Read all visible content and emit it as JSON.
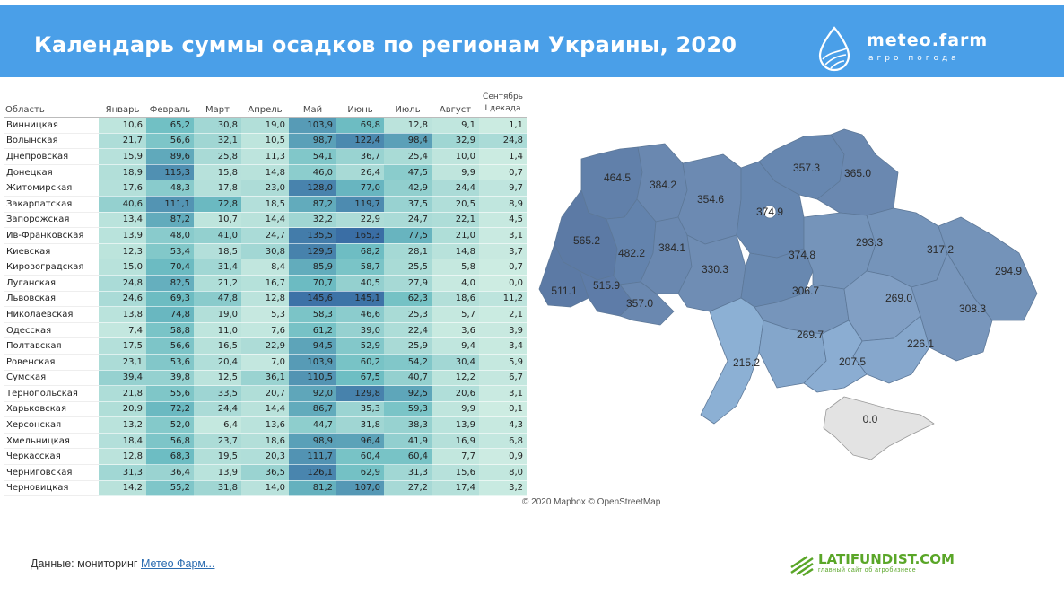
{
  "title": "Календарь суммы осадков по регионам Украины, 2020",
  "brand": {
    "name": "meteo.farm",
    "tagline": "агро погода"
  },
  "colors": {
    "header": "#4a9fe8",
    "map_low": "#8db4d6",
    "map_high": "#5a7ba6"
  },
  "chart_data": [
    {
      "type": "heatmap",
      "region_header": "Область",
      "columns": [
        "Январь",
        "Февраль",
        "Март",
        "Апрель",
        "Май",
        "Июнь",
        "Июль",
        "Август",
        "Сентябрь I декада"
      ],
      "rows": [
        {
          "region": "Винницкая",
          "values": [
            "10,6",
            "65,2",
            "30,8",
            "19,0",
            "103,9",
            "69,8",
            "12,8",
            "9,1",
            "1,1"
          ]
        },
        {
          "region": "Волынская",
          "values": [
            "21,7",
            "56,6",
            "32,1",
            "10,5",
            "98,7",
            "122,4",
            "98,4",
            "32,9",
            "24,8"
          ]
        },
        {
          "region": "Днепровская",
          "values": [
            "15,9",
            "89,6",
            "25,8",
            "11,3",
            "54,1",
            "36,7",
            "25,4",
            "10,0",
            "1,4"
          ]
        },
        {
          "region": "Донецкая",
          "values": [
            "18,9",
            "115,3",
            "15,8",
            "14,8",
            "46,0",
            "26,4",
            "47,5",
            "9,9",
            "0,7"
          ]
        },
        {
          "region": "Житомирская",
          "values": [
            "17,6",
            "48,3",
            "17,8",
            "23,0",
            "128,0",
            "77,0",
            "42,9",
            "24,4",
            "9,7"
          ]
        },
        {
          "region": "Закарпатская",
          "values": [
            "40,6",
            "111,1",
            "72,8",
            "18,5",
            "87,2",
            "119,7",
            "37,5",
            "20,5",
            "8,9"
          ]
        },
        {
          "region": "Запорожская",
          "values": [
            "13,4",
            "87,2",
            "10,7",
            "14,4",
            "32,2",
            "22,9",
            "24,7",
            "22,1",
            "4,5"
          ]
        },
        {
          "region": "Ив-Франковская",
          "values": [
            "13,9",
            "48,0",
            "41,0",
            "24,7",
            "135,5",
            "165,3",
            "77,5",
            "21,0",
            "3,1"
          ]
        },
        {
          "region": "Киевская",
          "values": [
            "12,3",
            "53,4",
            "18,5",
            "30,8",
            "129,5",
            "68,2",
            "28,1",
            "14,8",
            "3,7"
          ]
        },
        {
          "region": "Кировоградская",
          "values": [
            "15,0",
            "70,4",
            "31,4",
            "8,4",
            "85,9",
            "58,7",
            "25,5",
            "5,8",
            "0,7"
          ]
        },
        {
          "region": "Луганская",
          "values": [
            "24,8",
            "82,5",
            "21,2",
            "16,7",
            "70,7",
            "40,5",
            "27,9",
            "4,0",
            "0,0"
          ]
        },
        {
          "region": "Львовская",
          "values": [
            "24,6",
            "69,3",
            "47,8",
            "12,8",
            "145,6",
            "145,1",
            "62,3",
            "18,6",
            "11,2"
          ]
        },
        {
          "region": "Николаевская",
          "values": [
            "13,8",
            "74,8",
            "19,0",
            "5,3",
            "58,3",
            "46,6",
            "25,3",
            "5,7",
            "2,1"
          ]
        },
        {
          "region": "Одесская",
          "values": [
            "7,4",
            "58,8",
            "11,0",
            "7,6",
            "61,2",
            "39,0",
            "22,4",
            "3,6",
            "3,9"
          ]
        },
        {
          "region": "Полтавская",
          "values": [
            "17,5",
            "56,6",
            "16,5",
            "22,9",
            "94,5",
            "52,9",
            "25,9",
            "9,4",
            "3,4"
          ]
        },
        {
          "region": "Ровенская",
          "values": [
            "23,1",
            "53,6",
            "20,4",
            "7,0",
            "103,9",
            "60,2",
            "54,2",
            "30,4",
            "5,9"
          ]
        },
        {
          "region": "Сумская",
          "values": [
            "39,4",
            "39,8",
            "12,5",
            "36,1",
            "110,5",
            "67,5",
            "40,7",
            "12,2",
            "6,7"
          ]
        },
        {
          "region": "Тернопольская",
          "values": [
            "21,8",
            "55,6",
            "33,5",
            "20,7",
            "92,0",
            "129,8",
            "92,5",
            "20,6",
            "3,1"
          ]
        },
        {
          "region": "Харьковская",
          "values": [
            "20,9",
            "72,2",
            "24,4",
            "14,4",
            "86,7",
            "35,3",
            "59,3",
            "9,9",
            "0,1"
          ]
        },
        {
          "region": "Херсонская",
          "values": [
            "13,2",
            "52,0",
            "6,4",
            "13,6",
            "44,7",
            "31,8",
            "38,3",
            "13,9",
            "4,3"
          ]
        },
        {
          "region": "Хмельницкая",
          "values": [
            "18,4",
            "56,8",
            "23,7",
            "18,6",
            "98,9",
            "96,4",
            "41,9",
            "16,9",
            "6,8"
          ]
        },
        {
          "region": "Черкасская",
          "values": [
            "12,8",
            "68,3",
            "19,5",
            "20,3",
            "111,7",
            "60,4",
            "60,4",
            "7,7",
            "0,9"
          ]
        },
        {
          "region": "Черниговская",
          "values": [
            "31,3",
            "36,4",
            "13,9",
            "36,5",
            "126,1",
            "62,9",
            "31,3",
            "15,6",
            "8,0"
          ]
        },
        {
          "region": "Черновицкая",
          "values": [
            "14,2",
            "55,2",
            "31,8",
            "14,0",
            "81,2",
            "107,0",
            "27,2",
            "17,4",
            "3,2"
          ]
        }
      ]
    },
    {
      "type": "choropleth-map",
      "labels": [
        "464.5",
        "384.2",
        "354.6",
        "357.3",
        "365.0",
        "374.9",
        "565.2",
        "482.2",
        "384.1",
        "330.3",
        "374.8",
        "293.3",
        "317.2",
        "294.9",
        "511.1",
        "515.9",
        "357.0",
        "306.7",
        "269.0",
        "308.3",
        "269.7",
        "226.1",
        "215.2",
        "207.5",
        "0.0"
      ]
    }
  ],
  "map_attribution": "© 2020 Mapbox © OpenStreetMap",
  "source": {
    "prefix": "Данные: мониторинг",
    "link": "Метео Фарм..."
  },
  "footer_brand": {
    "name": "LATIFUNDIST.COM",
    "tagline": "главный сайт об агробизнесе"
  }
}
